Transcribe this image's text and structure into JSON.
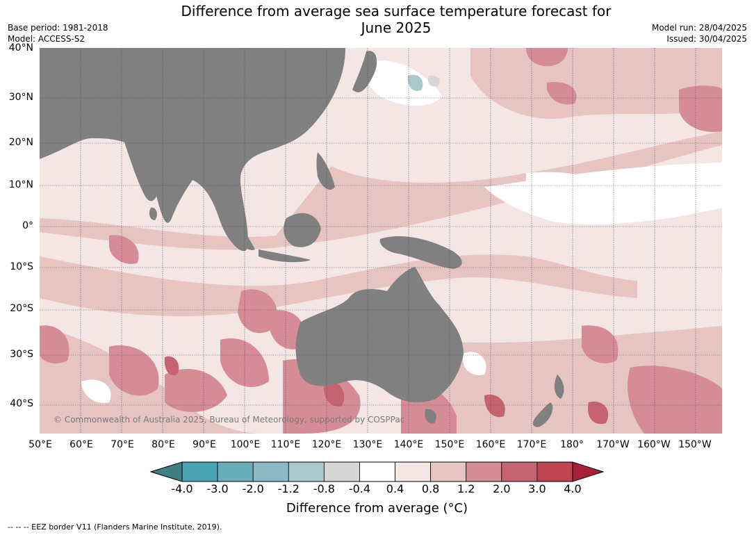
{
  "header": {
    "title_line1": "Difference from average sea surface temperature forecast for",
    "title_line2": "June 2025",
    "base_period": "Base period: 1981-2018",
    "model": "Model: ACCESS-S2",
    "model_run": "Model run: 28/04/2025",
    "issued": "Issued: 30/04/2025"
  },
  "map": {
    "lat_labels": [
      "40°N",
      "30°N",
      "20°N",
      "10°N",
      "0°",
      "10°S",
      "20°S",
      "30°S",
      "40°S"
    ],
    "lon_labels": [
      "50°E",
      "60°E",
      "70°E",
      "80°E",
      "90°E",
      "100°E",
      "110°E",
      "120°E",
      "130°E",
      "140°E",
      "150°E",
      "160°E",
      "170°E",
      "180°",
      "170°W",
      "160°W",
      "150°W"
    ],
    "copyright": "© Commonwealth of Australia 2025, Bureau of Meteorology, supported by COSPPac",
    "land_color": "#808080",
    "ocean_base_color": "#f3e6e5"
  },
  "colorbar": {
    "ticks": [
      "-4.0",
      "-3.0",
      "-2.0",
      "-1.2",
      "-0.8",
      "-0.4",
      "0.4",
      "0.8",
      "1.2",
      "2.0",
      "3.0",
      "4.0"
    ],
    "colors": [
      "#4aa3b2",
      "#6aaebb",
      "#8bbac5",
      "#a8c8cb",
      "#d6d6d6",
      "#ffffff",
      "#f3e6e5",
      "#e6c4c2",
      "#d58c96",
      "#c56470",
      "#be4551"
    ],
    "under_color": "#3f7f86",
    "over_color": "#a8203a",
    "title": "Difference from average (°C)"
  },
  "footer": {
    "eez_note": "--  --  -- EEZ border V11 (Flanders Marine Institute, 2019)."
  }
}
